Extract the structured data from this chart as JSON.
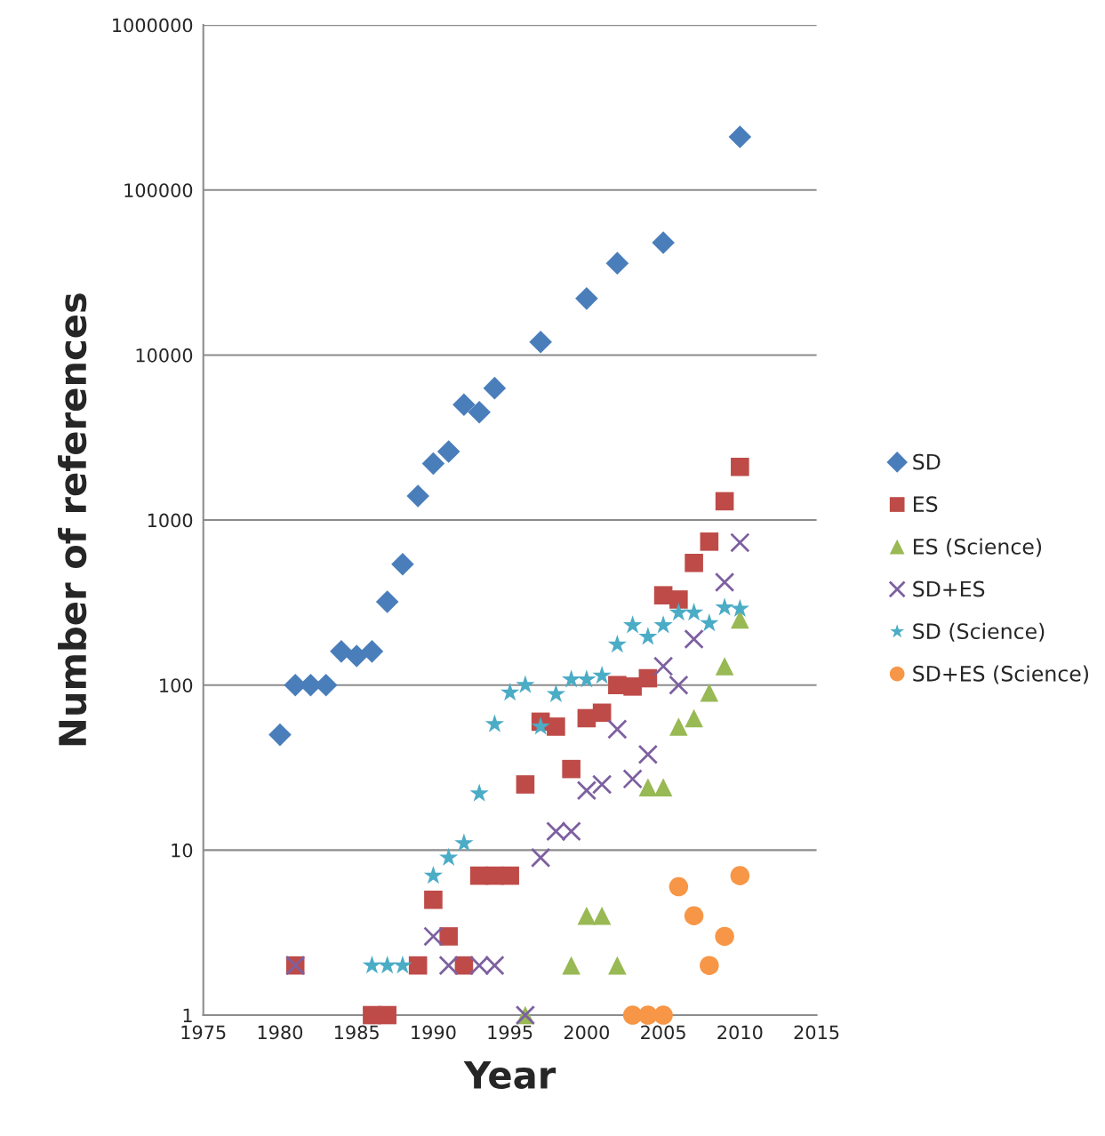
{
  "chart_data": {
    "type": "scatter",
    "xlabel": "Year",
    "ylabel": "Number of references",
    "log": "y",
    "xlim": [
      1975,
      2015
    ],
    "xticks": [
      1975,
      1980,
      1985,
      1990,
      1995,
      2000,
      2005,
      2010,
      2015
    ],
    "ylim": [
      1,
      1000000
    ],
    "yticks": [
      1,
      10,
      100,
      1000,
      10000,
      100000,
      1000000
    ],
    "grid": "y",
    "legend": "right",
    "series": [
      {
        "name": "SD",
        "color": "#4a7ebb",
        "marker": "diamond",
        "x": [
          1980,
          1981,
          1982,
          1983,
          1984,
          1985,
          1986,
          1987,
          1988,
          1989,
          1990,
          1991,
          1992,
          1993,
          1994,
          1997,
          2000,
          2002,
          2005,
          2010
        ],
        "values": [
          50,
          100,
          100,
          100,
          160,
          150,
          160,
          320,
          540,
          1400,
          2200,
          2600,
          5000,
          4500,
          6300,
          12000,
          22000,
          36000,
          48000,
          210000
        ]
      },
      {
        "name": "ES",
        "color": "#be4b48",
        "marker": "square",
        "x": [
          1981,
          1986,
          1987,
          1989,
          1990,
          1991,
          1992,
          1993,
          1994,
          1995,
          1996,
          1997,
          1998,
          1999,
          2000,
          2001,
          2002,
          2003,
          2004,
          2005,
          2006,
          2007,
          2008,
          2009,
          2010
        ],
        "values": [
          2,
          1,
          1,
          2,
          5,
          3,
          2,
          7,
          7,
          7,
          25,
          60,
          56,
          31,
          63,
          68,
          100,
          98,
          110,
          350,
          330,
          550,
          740,
          1300,
          2100
        ]
      },
      {
        "name": "ES (Science)",
        "color": "#98b954",
        "marker": "triangle",
        "x": [
          1996,
          1999,
          2000,
          2001,
          2002,
          2004,
          2005,
          2006,
          2007,
          2008,
          2009,
          2010
        ],
        "values": [
          1,
          2,
          4,
          4,
          2,
          24,
          24,
          56,
          63,
          90,
          130,
          250
        ]
      },
      {
        "name": "SD+ES",
        "color": "#7d60a0",
        "marker": "cross",
        "x": [
          1981,
          1990,
          1991,
          1993,
          1994,
          1996,
          1997,
          1998,
          1999,
          2000,
          2001,
          2002,
          2003,
          2004,
          2005,
          2006,
          2007,
          2009,
          2010
        ],
        "values": [
          2,
          3,
          2,
          2,
          2,
          1,
          9,
          13,
          13,
          23,
          25,
          54,
          27,
          38,
          130,
          100,
          190,
          420,
          730
        ]
      },
      {
        "name": "SD (Science)",
        "color": "#4bacc6",
        "marker": "star",
        "x": [
          1986,
          1987,
          1988,
          1990,
          1991,
          1992,
          1993,
          1994,
          1995,
          1996,
          1997,
          1998,
          1999,
          2000,
          2001,
          2002,
          2003,
          2004,
          2005,
          2006,
          2007,
          2008,
          2009,
          2010
        ],
        "values": [
          2,
          2,
          2,
          7,
          9,
          11,
          22,
          58,
          90,
          100,
          56,
          88,
          108,
          108,
          114,
          176,
          230,
          196,
          230,
          275,
          275,
          237,
          295,
          290
        ]
      },
      {
        "name": "SD+ES (Science)",
        "color": "#f79646",
        "marker": "circle",
        "x": [
          2003,
          2004,
          2005,
          2006,
          2007,
          2008,
          2009,
          2010
        ],
        "values": [
          1,
          1,
          1,
          6,
          4,
          2,
          3,
          7
        ]
      }
    ]
  }
}
